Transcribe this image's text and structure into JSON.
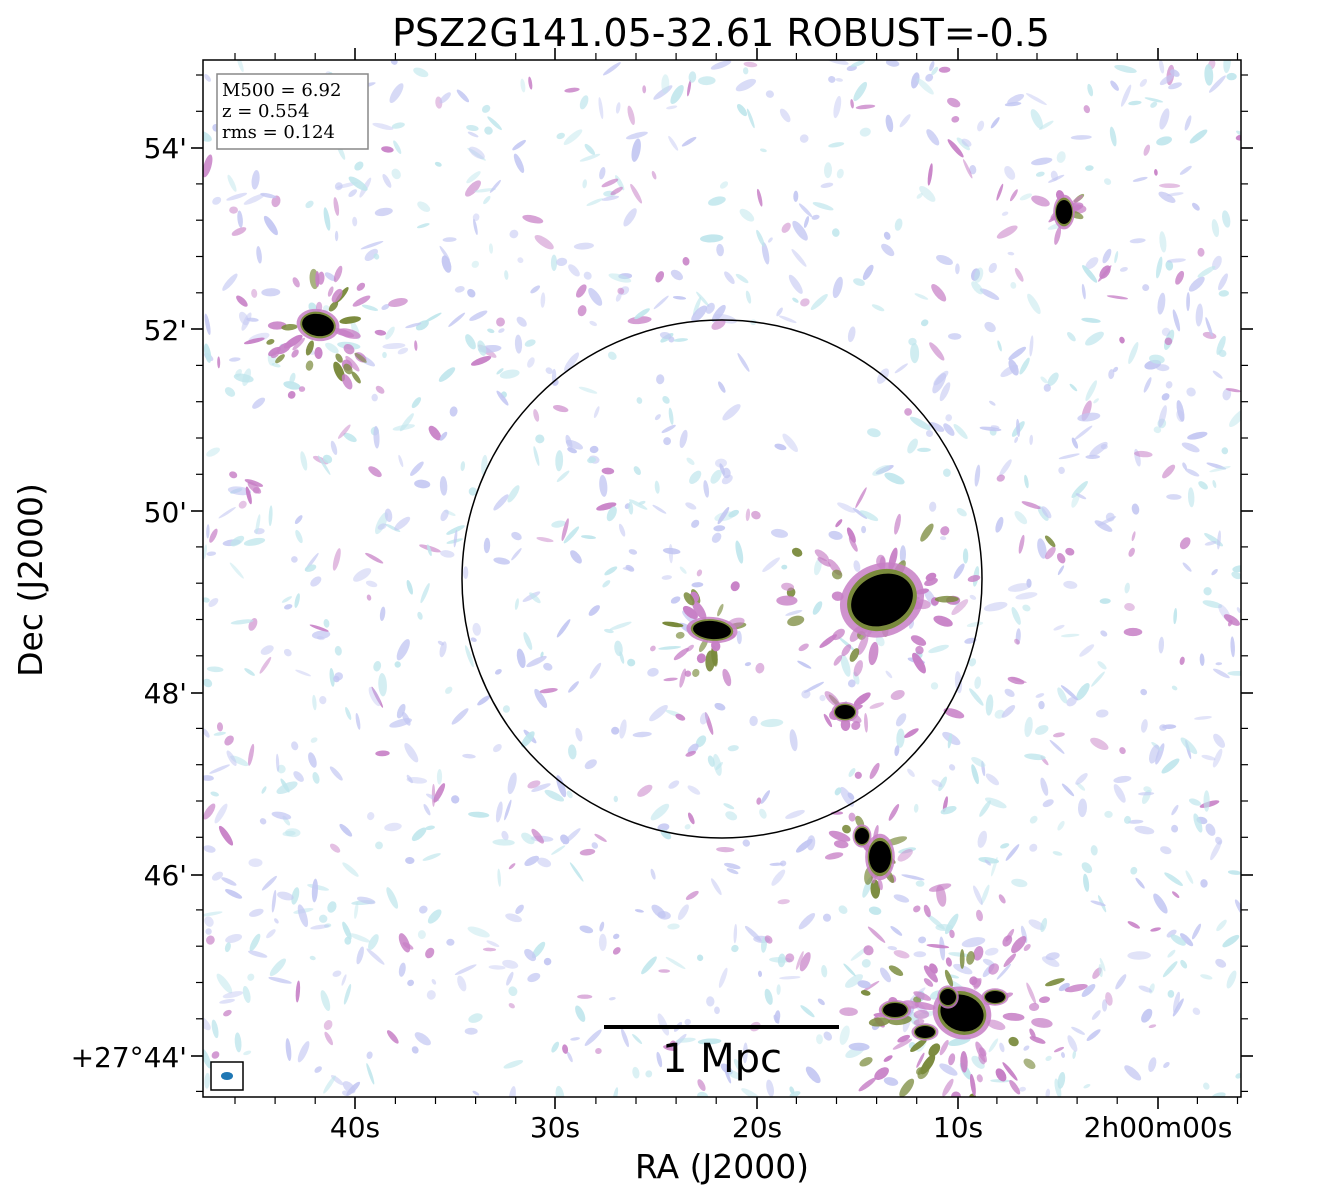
{
  "title": "PSZ2G141.05-32.61 ROBUST=-0.5",
  "x_axis": {
    "label": "RA (J2000)",
    "ticks": [
      "40s",
      "30s",
      "20s",
      "10s",
      "2h00m00s"
    ]
  },
  "y_axis": {
    "label": "Dec (J2000)",
    "ticks": [
      "54'",
      "52'",
      "50'",
      "48'",
      "46'",
      "+27°44'"
    ]
  },
  "info_box": {
    "lines": [
      "M500 = 6.92",
      "z = 0.554",
      "rms = 0.124"
    ]
  },
  "scale_bar": {
    "label": "1 Mpc"
  },
  "colormap": {
    "low": "#bfe6ec",
    "mid1": "#c3c7f2",
    "mid2": "#c77fc6",
    "mid3": "#7a8a3c",
    "high": "#000000"
  },
  "beam_color": "#1f77b4"
}
